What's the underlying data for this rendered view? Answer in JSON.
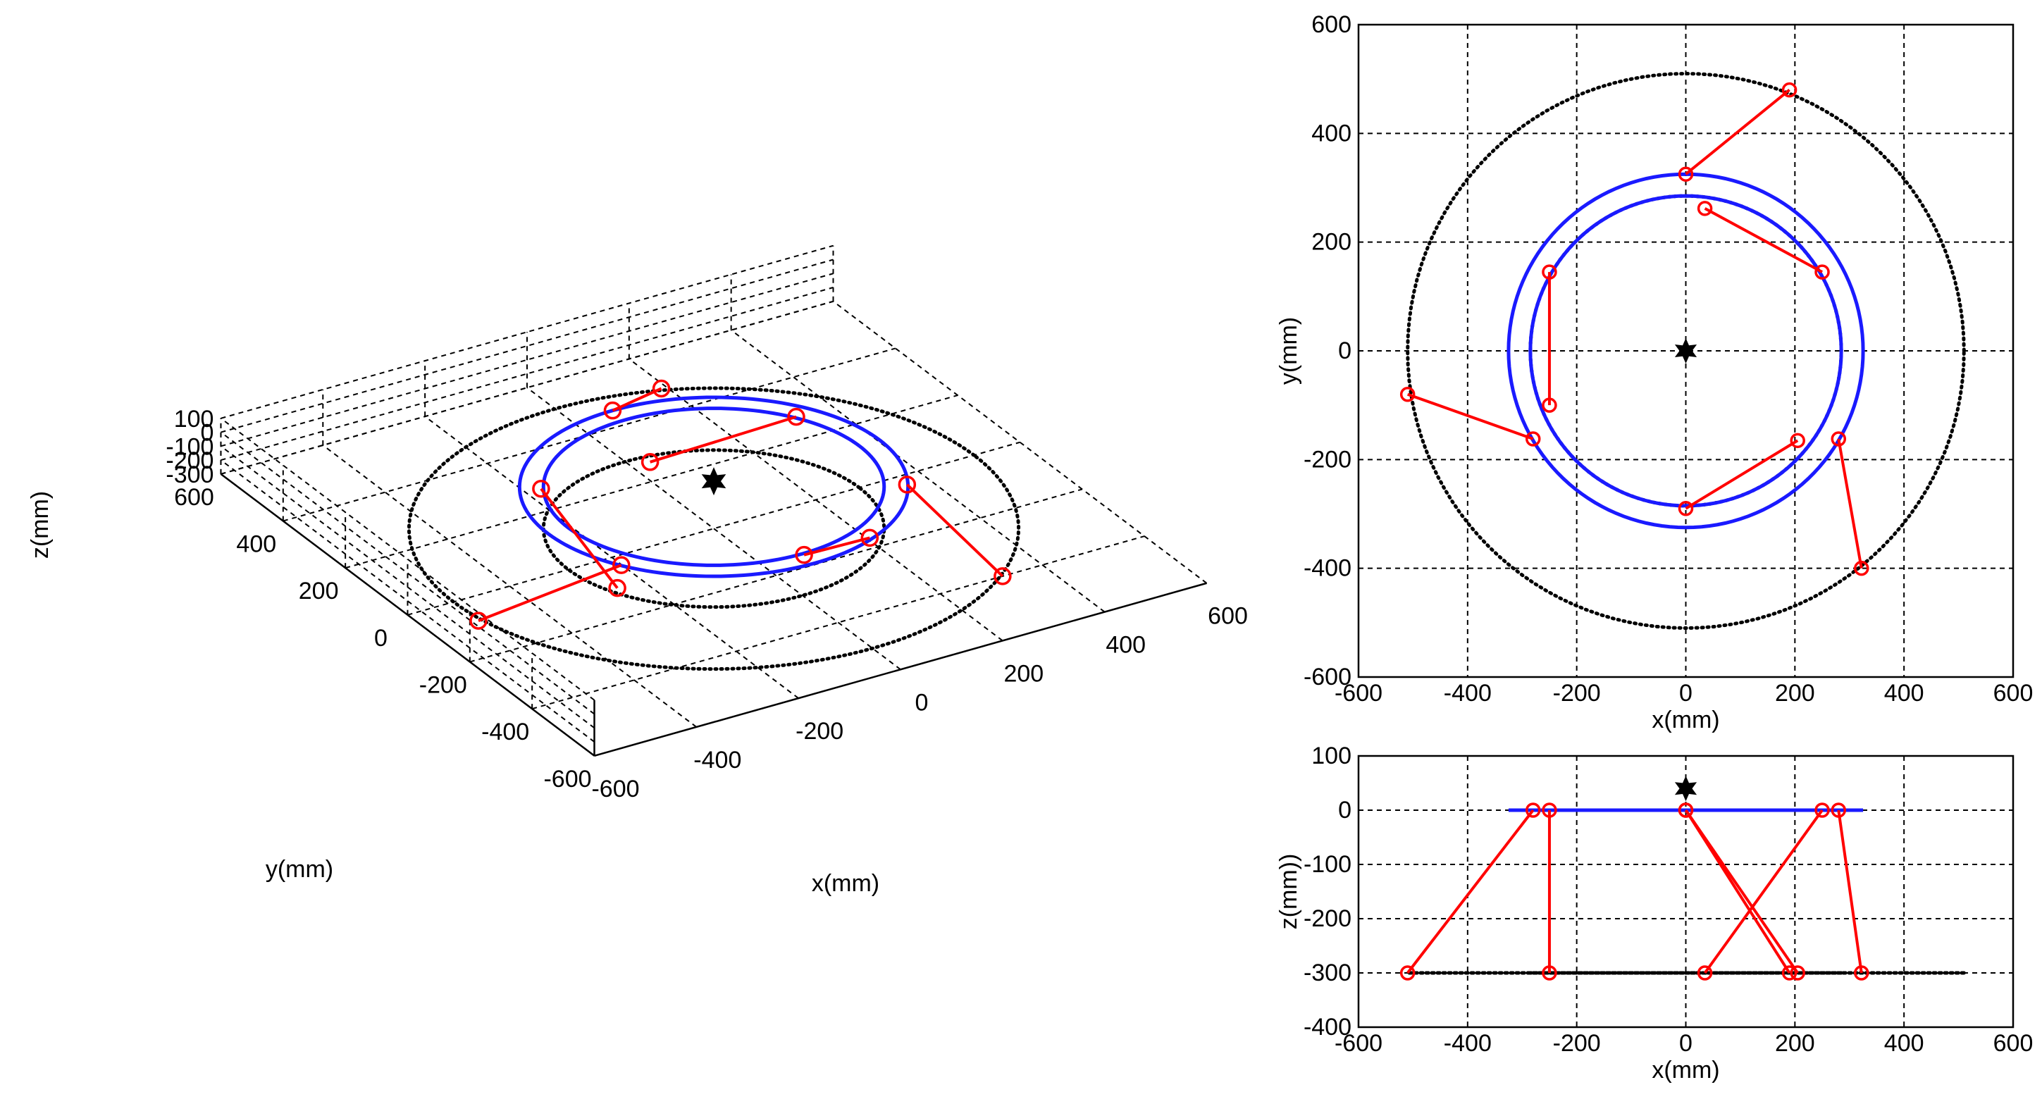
{
  "chart_data": [
    {
      "id": "view3d",
      "type": "line3d",
      "xlabel": "x(mm)",
      "ylabel": "y(mm)",
      "zlabel": "z(mm)",
      "xlim": [
        -600,
        600
      ],
      "ylim": [
        -600,
        600
      ],
      "zlim": [
        -300,
        100
      ],
      "xticks": [
        -600,
        -400,
        -200,
        0,
        200,
        400,
        600
      ],
      "yticks": [
        -600,
        -400,
        -200,
        0,
        200,
        400,
        600
      ],
      "zticks": [
        -300,
        -200,
        -100,
        0,
        100
      ],
      "grid": true
    },
    {
      "id": "viewXY",
      "type": "line",
      "xlabel": "x(mm)",
      "ylabel": "y(mm)",
      "xlim": [
        -600,
        600
      ],
      "ylim": [
        -600,
        600
      ],
      "xticks": [
        -600,
        -400,
        -200,
        0,
        200,
        400,
        600
      ],
      "yticks": [
        -600,
        -400,
        -200,
        0,
        200,
        400,
        600
      ],
      "grid": true
    },
    {
      "id": "viewXZ",
      "type": "line",
      "xlabel": "x(mm)",
      "ylabel": "z(mm))",
      "xlim": [
        -600,
        600
      ],
      "ylim": [
        -400,
        100
      ],
      "xticks": [
        -600,
        -400,
        -200,
        0,
        200,
        400,
        600
      ],
      "yticks": [
        -400,
        -300,
        -200,
        -100,
        0,
        100
      ],
      "grid": true
    }
  ],
  "mechanism": {
    "platform_outer_radius": 325,
    "platform_inner_radius": 285,
    "platform_z": 0,
    "base_outer_radius": 510,
    "base_inner_radius": 285,
    "base_z": -300,
    "end_effector": {
      "x": 0,
      "y": 0,
      "z": 40
    },
    "legs": [
      {
        "top": [
          0,
          325,
          0
        ],
        "bottom": [
          190,
          480,
          -300
        ]
      },
      {
        "top": [
          250,
          145,
          0
        ],
        "bottom": [
          35,
          262,
          -300
        ]
      },
      {
        "top": [
          -250,
          145,
          0
        ],
        "bottom": [
          -250,
          -100,
          -300
        ]
      },
      {
        "top": [
          -280,
          -162,
          0
        ],
        "bottom": [
          -510,
          -80,
          -300
        ]
      },
      {
        "top": [
          0,
          -290,
          0
        ],
        "bottom": [
          205,
          -165,
          -300
        ]
      },
      {
        "top": [
          280,
          -162,
          0
        ],
        "bottom": [
          322,
          -400,
          -300
        ]
      }
    ],
    "colors": {
      "platform": "#1a1aff",
      "legs": "#ff0000",
      "base": "#000000",
      "effector": "#000000"
    }
  }
}
